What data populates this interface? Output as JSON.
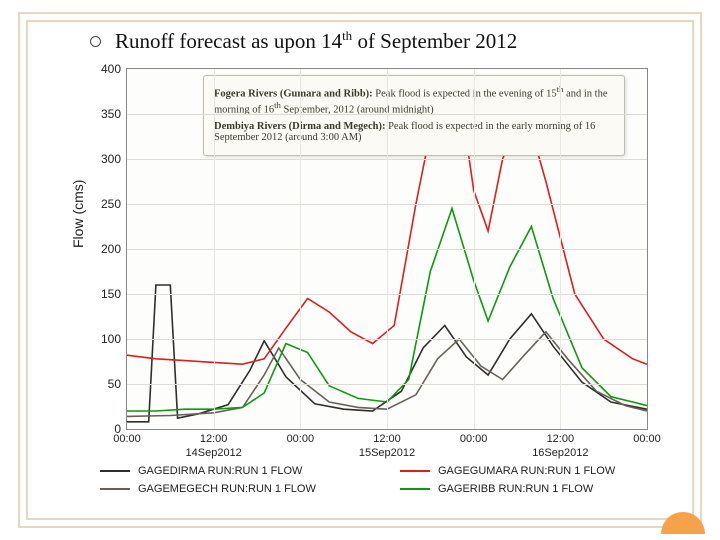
{
  "title_html": "Runoff forecast as upon 14<sup>th</sup> of September 2012",
  "info": {
    "p1_html": "<b>Fogera Rivers (Gumara and Ribb):</b> Peak flood is expected in the evening of 15<sup>th</sup> and in the morning of 16<sup>th</sup> September, 2012 (around midnight)",
    "p2_html": "<b>Dembiya Rivers (Dirma and Megech):</b> Peak flood is expected in the early morning of 16 September 2012 (around 3:00 AM)"
  },
  "colors": {
    "dirma": "#2e2e2e",
    "gumara": "#d92020",
    "megech": "#6a6058",
    "ribb": "#0c9a0c",
    "frame": "#e8d6c0",
    "accent": "#f5a24a",
    "grid": "#dcdcd4",
    "plot_bg": "#fdfdfb"
  },
  "chart": {
    "type": "line",
    "ylabel": "Flow (cms)",
    "ylim": [
      0,
      400
    ],
    "ytick_step": 50,
    "x_hours": 72,
    "xticks": [
      {
        "h": 0,
        "label": "00:00"
      },
      {
        "h": 12,
        "label": "12:00"
      },
      {
        "h": 24,
        "label": "00:00"
      },
      {
        "h": 36,
        "label": "12:00"
      },
      {
        "h": 48,
        "label": "00:00"
      },
      {
        "h": 60,
        "label": "12:00"
      },
      {
        "h": 72,
        "label": "00:00"
      }
    ],
    "xdates": [
      {
        "h": 12,
        "label": "14Sep2012"
      },
      {
        "h": 36,
        "label": "15Sep2012"
      },
      {
        "h": 60,
        "label": "16Sep2012"
      }
    ],
    "series": [
      {
        "key": "dirma",
        "label": "GAGEDIRMA RUN:RUN 1 FLOW",
        "color": "#2e2e2e",
        "pts": [
          [
            0,
            8
          ],
          [
            3,
            8
          ],
          [
            4,
            160
          ],
          [
            6,
            160
          ],
          [
            7,
            12
          ],
          [
            10,
            17
          ],
          [
            14,
            27
          ],
          [
            17,
            65
          ],
          [
            19,
            98
          ],
          [
            22,
            58
          ],
          [
            26,
            28
          ],
          [
            30,
            22
          ],
          [
            34,
            20
          ],
          [
            38,
            42
          ],
          [
            41,
            90
          ],
          [
            44,
            115
          ],
          [
            47,
            80
          ],
          [
            50,
            60
          ],
          [
            53,
            100
          ],
          [
            56,
            128
          ],
          [
            59,
            92
          ],
          [
            63,
            52
          ],
          [
            67,
            30
          ],
          [
            72,
            22
          ]
        ]
      },
      {
        "key": "gumara",
        "label": "GAGEGUMARA RUN:RUN 1 FLOW",
        "color": "#d92020",
        "pts": [
          [
            0,
            82
          ],
          [
            4,
            78
          ],
          [
            8,
            76
          ],
          [
            12,
            74
          ],
          [
            16,
            72
          ],
          [
            19,
            78
          ],
          [
            22,
            112
          ],
          [
            25,
            145
          ],
          [
            28,
            130
          ],
          [
            31,
            108
          ],
          [
            34,
            95
          ],
          [
            37,
            115
          ],
          [
            40,
            250
          ],
          [
            43,
            370
          ],
          [
            46,
            378
          ],
          [
            48,
            265
          ],
          [
            50,
            220
          ],
          [
            52,
            300
          ],
          [
            55,
            360
          ],
          [
            58,
            275
          ],
          [
            62,
            150
          ],
          [
            66,
            100
          ],
          [
            70,
            78
          ],
          [
            72,
            72
          ]
        ]
      },
      {
        "key": "megech",
        "label": "GAGEMEGECH RUN:RUN 1 FLOW",
        "color": "#6a6058",
        "pts": [
          [
            0,
            14
          ],
          [
            6,
            15
          ],
          [
            12,
            18
          ],
          [
            16,
            24
          ],
          [
            19,
            60
          ],
          [
            21,
            90
          ],
          [
            24,
            55
          ],
          [
            28,
            30
          ],
          [
            32,
            24
          ],
          [
            36,
            22
          ],
          [
            40,
            38
          ],
          [
            43,
            78
          ],
          [
            46,
            100
          ],
          [
            49,
            70
          ],
          [
            52,
            55
          ],
          [
            55,
            82
          ],
          [
            58,
            108
          ],
          [
            61,
            78
          ],
          [
            65,
            42
          ],
          [
            69,
            26
          ],
          [
            72,
            20
          ]
        ]
      },
      {
        "key": "ribb",
        "label": "GAGERIBB RUN:RUN 1 FLOW",
        "color": "#0c9a0c",
        "pts": [
          [
            0,
            20
          ],
          [
            4,
            20
          ],
          [
            8,
            22
          ],
          [
            12,
            22
          ],
          [
            16,
            24
          ],
          [
            19,
            40
          ],
          [
            22,
            95
          ],
          [
            25,
            85
          ],
          [
            28,
            48
          ],
          [
            32,
            34
          ],
          [
            36,
            30
          ],
          [
            39,
            55
          ],
          [
            42,
            175
          ],
          [
            45,
            245
          ],
          [
            48,
            165
          ],
          [
            50,
            120
          ],
          [
            53,
            180
          ],
          [
            56,
            225
          ],
          [
            59,
            145
          ],
          [
            63,
            68
          ],
          [
            67,
            36
          ],
          [
            72,
            26
          ]
        ]
      }
    ]
  },
  "legend": [
    {
      "color": "#2e2e2e",
      "label": "GAGEDIRMA RUN:RUN 1 FLOW"
    },
    {
      "color": "#d92020",
      "label": "GAGEGUMARA RUN:RUN 1 FLOW"
    },
    {
      "color": "#6a6058",
      "label": "GAGEMEGECH RUN:RUN 1 FLOW"
    },
    {
      "color": "#0c9a0c",
      "label": "GAGERIBB RUN:RUN 1 FLOW"
    }
  ]
}
